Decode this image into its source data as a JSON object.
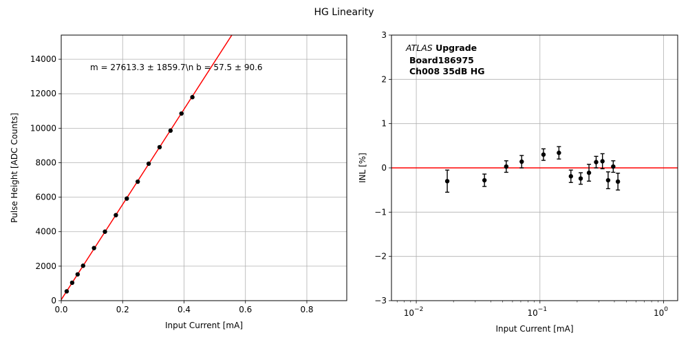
{
  "figure_title": "HG Linearity",
  "colors": {
    "fit": "#ff0000",
    "points": "#000000",
    "grid": "#b0b0b0",
    "reference": "#ff0000"
  },
  "chart_data": [
    {
      "type": "scatter",
      "title": "",
      "xlabel": "Input Current [mA]",
      "ylabel": "Pulse Height [ADC Counts]",
      "xlim": [
        0,
        0.93
      ],
      "ylim": [
        0,
        15400
      ],
      "xticks": [
        "0.0",
        "0.2",
        "0.4",
        "0.6",
        "0.8"
      ],
      "yticks": [
        "0",
        "2000",
        "4000",
        "6000",
        "8000",
        "10000",
        "12000",
        "14000"
      ],
      "grid": true,
      "annotation": "m = 27613.3 ± 1859.7\\n b = 57.5 ± 90.6",
      "fit": {
        "slope": 27613.3,
        "intercept": 57.5
      },
      "series": [
        {
          "x": [
            0.0178,
            0.0356,
            0.0534,
            0.0712,
            0.1068,
            0.1424,
            0.178,
            0.2136,
            0.2492,
            0.2848,
            0.3204,
            0.356,
            0.3916,
            0.4272
          ],
          "y": [
            540,
            1040,
            1525,
            2025,
            3050,
            4000,
            4960,
            5920,
            6900,
            7940,
            8900,
            9860,
            10850,
            11800
          ]
        }
      ]
    },
    {
      "type": "scatter",
      "title": "",
      "xlabel": "Input Current [mA]",
      "ylabel": "INL [%]",
      "xscale": "log",
      "xlim": [
        0.0063,
        1.3
      ],
      "ylim": [
        -3,
        3
      ],
      "xticks": [
        {
          "base": "10",
          "exp": "−2"
        },
        {
          "base": "10",
          "exp": "−1"
        },
        {
          "base": "10",
          "exp": "0"
        }
      ],
      "yticks": [
        "−3",
        "−2",
        "−1",
        "0",
        "1",
        "2",
        "3"
      ],
      "grid": true,
      "reference_line": 0,
      "annotation_lines": [
        {
          "italic": "ATLAS",
          "bold": " Upgrade"
        },
        {
          "bold": "Board186975"
        },
        {
          "bold": "Ch008 35dB HG"
        }
      ],
      "series": [
        {
          "x": [
            0.0178,
            0.0356,
            0.0534,
            0.0712,
            0.1068,
            0.1424,
            0.178,
            0.2136,
            0.2492,
            0.2848,
            0.3204,
            0.356,
            0.3916,
            0.4272
          ],
          "y": [
            -0.3,
            -0.28,
            0.03,
            0.14,
            0.3,
            0.34,
            -0.19,
            -0.24,
            -0.11,
            0.13,
            0.15,
            -0.28,
            0.03,
            -0.31
          ],
          "err": [
            0.25,
            0.14,
            0.13,
            0.14,
            0.13,
            0.14,
            0.14,
            0.13,
            0.19,
            0.13,
            0.17,
            0.19,
            0.13,
            0.19
          ]
        }
      ]
    }
  ]
}
